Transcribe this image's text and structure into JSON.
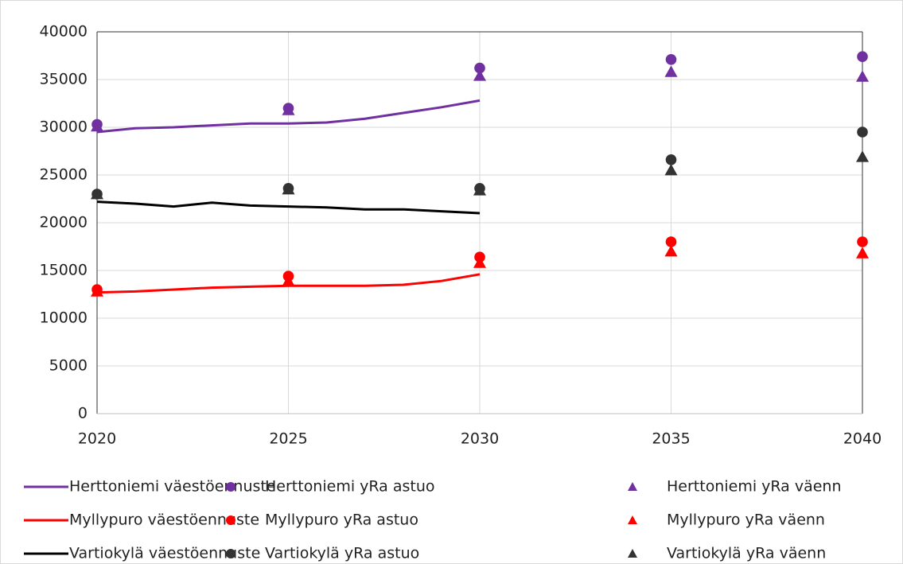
{
  "chart_data": {
    "type": "line",
    "xlim": [
      2020,
      2040
    ],
    "xticks": [
      2020,
      2025,
      2030,
      2035,
      2040
    ],
    "ylim": [
      0,
      40000
    ],
    "yticks": [
      0,
      5000,
      10000,
      15000,
      20000,
      25000,
      30000,
      35000,
      40000
    ],
    "grid": true,
    "series": [
      {
        "name": "Herttoniemi väestöennuste",
        "type": "line",
        "color": "#7030a0",
        "x": [
          2020,
          2021,
          2022,
          2023,
          2024,
          2025,
          2026,
          2027,
          2028,
          2029,
          2030
        ],
        "values": [
          29500,
          29900,
          30000,
          30200,
          30400,
          30400,
          30500,
          30900,
          31500,
          32100,
          32800
        ]
      },
      {
        "name": "Herttoniemi yRa astuo",
        "type": "scatter",
        "marker": "circle",
        "color": "#7030a0",
        "x": [
          2020,
          2025,
          2030,
          2035,
          2040
        ],
        "values": [
          30300,
          32000,
          36200,
          37100,
          37400
        ]
      },
      {
        "name": "Herttoniemi yRa väenn",
        "type": "scatter",
        "marker": "triangle",
        "color": "#7030a0",
        "x": [
          2020,
          2025,
          2030,
          2035,
          2040
        ],
        "values": [
          30100,
          31800,
          35400,
          35800,
          35300
        ]
      },
      {
        "name": "Myllypuro väestöennuste",
        "type": "line",
        "color": "#ff0000",
        "x": [
          2020,
          2021,
          2022,
          2023,
          2024,
          2025,
          2026,
          2027,
          2028,
          2029,
          2030
        ],
        "values": [
          12700,
          12800,
          13000,
          13200,
          13300,
          13400,
          13400,
          13400,
          13500,
          13900,
          14600
        ]
      },
      {
        "name": "Myllypuro yRa astuo",
        "type": "scatter",
        "marker": "circle",
        "color": "#ff0000",
        "x": [
          2020,
          2025,
          2030,
          2035,
          2040
        ],
        "values": [
          13000,
          14400,
          16400,
          18000,
          18000
        ]
      },
      {
        "name": "Myllypuro yRa väenn",
        "type": "scatter",
        "marker": "triangle",
        "color": "#ff0000",
        "x": [
          2020,
          2025,
          2030,
          2035,
          2040
        ],
        "values": [
          12800,
          13900,
          15800,
          17000,
          16800
        ]
      },
      {
        "name": "Vartiokylä väestöennuste",
        "type": "line",
        "color": "#000000",
        "x": [
          2020,
          2021,
          2022,
          2023,
          2024,
          2025,
          2026,
          2027,
          2028,
          2029,
          2030
        ],
        "values": [
          22200,
          22000,
          21700,
          22100,
          21800,
          21700,
          21600,
          21400,
          21400,
          21200,
          21000
        ]
      },
      {
        "name": "Vartiokylä yRa astuo",
        "type": "scatter",
        "marker": "circle",
        "color": "#333333",
        "x": [
          2020,
          2025,
          2030,
          2035,
          2040
        ],
        "values": [
          23000,
          23600,
          23600,
          26600,
          29500
        ]
      },
      {
        "name": "Vartiokylä yRa väenn",
        "type": "scatter",
        "marker": "triangle",
        "color": "#333333",
        "x": [
          2020,
          2025,
          2030,
          2035,
          2040
        ],
        "values": [
          23000,
          23500,
          23400,
          25500,
          26900
        ]
      }
    ]
  }
}
